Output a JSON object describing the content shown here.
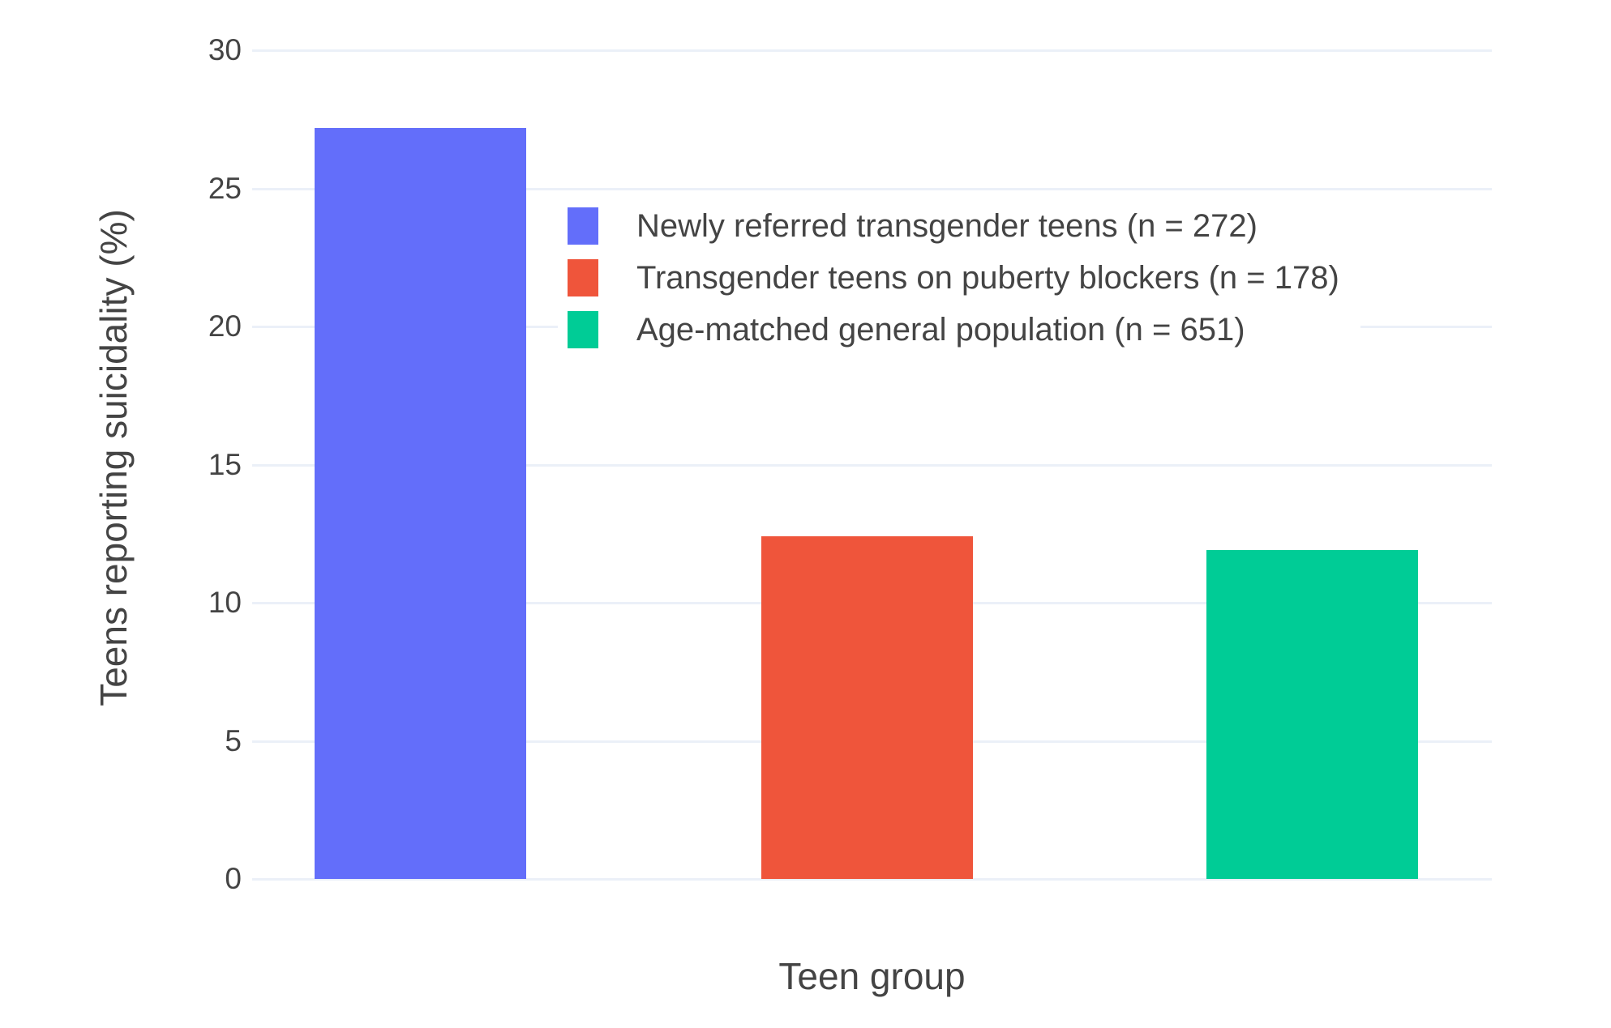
{
  "figure": {
    "background": "#ffffff",
    "text_color": "#444444",
    "grid_color": "#EBF0F8"
  },
  "chart_data": {
    "type": "bar",
    "title": "",
    "xlabel": "Teen group",
    "ylabel": "Teens reporting suicidality (%)",
    "ylim": [
      0,
      30.5
    ],
    "yticks": [
      0,
      5,
      10,
      15,
      20,
      25,
      30
    ],
    "grid": true,
    "grid_color": "#EBF0F8",
    "background": "#ffffff",
    "legend_position": "inside-upper-middle",
    "legend_background": "#ffffff",
    "series": [
      {
        "name": "Newly referred transgender teens (n = 272)",
        "value": 27.2,
        "color": "#636EFA"
      },
      {
        "name": "Transgender teens on puberty blockers (n = 178)",
        "value": 12.4,
        "color": "#EF553B"
      },
      {
        "name": "Age-matched general population (n = 651)",
        "value": 11.9,
        "color": "#00CC96"
      }
    ]
  }
}
